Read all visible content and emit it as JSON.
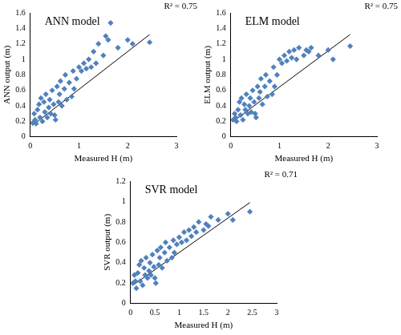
{
  "chart_data": [
    {
      "type": "scatter",
      "title": "ANN model",
      "annotation": "R² = 0.75",
      "x_label": "Measured H (m)",
      "y_label": "ANN output (m)",
      "xlim": [
        0,
        3
      ],
      "xticks": [
        0,
        1,
        2,
        3
      ],
      "ylim": [
        0,
        1.6
      ],
      "yticks": [
        0,
        0.2,
        0.4,
        0.6,
        0.8,
        1,
        1.2,
        1.4,
        1.6
      ],
      "grid": false,
      "series": [
        {
          "color": "#4f81bd",
          "marker": "diamond",
          "x": [
            0.05,
            0.08,
            0.1,
            0.12,
            0.15,
            0.18,
            0.2,
            0.22,
            0.25,
            0.28,
            0.3,
            0.32,
            0.35,
            0.38,
            0.4,
            0.42,
            0.45,
            0.48,
            0.5,
            0.52,
            0.55,
            0.58,
            0.6,
            0.62,
            0.65,
            0.7,
            0.72,
            0.75,
            0.8,
            0.85,
            0.88,
            0.9,
            0.95,
            1.0,
            1.05,
            1.1,
            1.15,
            1.2,
            1.25,
            1.3,
            1.35,
            1.4,
            1.5,
            1.55,
            1.6,
            1.65,
            1.8,
            2.0,
            2.1,
            2.45
          ],
          "values": [
            0.18,
            0.3,
            0.22,
            0.17,
            0.35,
            0.42,
            0.25,
            0.5,
            0.2,
            0.45,
            0.32,
            0.55,
            0.25,
            0.38,
            0.48,
            0.3,
            0.6,
            0.42,
            0.28,
            0.22,
            0.65,
            0.45,
            0.55,
            0.72,
            0.4,
            0.62,
            0.8,
            0.48,
            0.7,
            0.52,
            0.85,
            0.62,
            0.75,
            0.9,
            0.85,
            0.95,
            0.88,
            1.0,
            0.9,
            1.1,
            0.95,
            1.2,
            1.05,
            1.3,
            1.25,
            1.47,
            1.15,
            1.25,
            1.2,
            1.22
          ]
        },
        {
          "type": "line",
          "color": "#000000",
          "line_style": "solid",
          "x": [
            0.05,
            2.45
          ],
          "values": [
            0.15,
            1.32
          ]
        }
      ]
    },
    {
      "type": "scatter",
      "title": "ELM model",
      "annotation": "R² = 0.75",
      "x_label": "Measured H (m)",
      "y_label": "ELM output (m)",
      "xlim": [
        0,
        3
      ],
      "xticks": [
        0,
        1,
        2,
        3
      ],
      "ylim": [
        0,
        1.6
      ],
      "yticks": [
        0,
        0.2,
        0.4,
        0.6,
        0.8,
        1,
        1.2,
        1.4,
        1.6
      ],
      "grid": false,
      "series": [
        {
          "color": "#4f81bd",
          "marker": "diamond",
          "x": [
            0.05,
            0.08,
            0.1,
            0.12,
            0.15,
            0.18,
            0.2,
            0.22,
            0.25,
            0.28,
            0.3,
            0.32,
            0.35,
            0.38,
            0.4,
            0.42,
            0.45,
            0.48,
            0.5,
            0.52,
            0.55,
            0.58,
            0.6,
            0.62,
            0.65,
            0.7,
            0.72,
            0.75,
            0.8,
            0.85,
            0.88,
            0.9,
            0.95,
            1.0,
            1.05,
            1.1,
            1.15,
            1.2,
            1.25,
            1.3,
            1.35,
            1.4,
            1.5,
            1.55,
            1.6,
            1.65,
            1.8,
            2.0,
            2.1,
            2.45
          ],
          "values": [
            0.22,
            0.3,
            0.25,
            0.2,
            0.35,
            0.45,
            0.28,
            0.5,
            0.22,
            0.42,
            0.35,
            0.55,
            0.3,
            0.4,
            0.5,
            0.32,
            0.6,
            0.45,
            0.3,
            0.25,
            0.65,
            0.5,
            0.58,
            0.75,
            0.42,
            0.65,
            0.8,
            0.52,
            0.72,
            0.55,
            0.9,
            0.65,
            0.8,
            1.0,
            0.95,
            1.05,
            0.98,
            1.1,
            1.02,
            1.12,
            1.0,
            1.15,
            1.05,
            1.12,
            1.1,
            1.15,
            1.05,
            1.12,
            1.0,
            1.17
          ]
        },
        {
          "type": "line",
          "color": "#000000",
          "line_style": "solid",
          "x": [
            0.05,
            2.45
          ],
          "values": [
            0.2,
            1.32
          ]
        }
      ]
    },
    {
      "type": "scatter",
      "title": "SVR model",
      "annotation": "R² = 0.71",
      "x_label": "Measured H (m)",
      "y_label": "SVR output (m)",
      "xlim": [
        0,
        3
      ],
      "xticks": [
        0,
        0.5,
        1,
        1.5,
        2,
        2.5,
        3
      ],
      "ylim": [
        0,
        1.2
      ],
      "yticks": [
        0,
        0.2,
        0.4,
        0.6,
        0.8,
        1,
        1.2
      ],
      "grid": false,
      "series": [
        {
          "color": "#4f81bd",
          "marker": "diamond",
          "x": [
            0.05,
            0.08,
            0.1,
            0.12,
            0.15,
            0.18,
            0.2,
            0.22,
            0.25,
            0.28,
            0.3,
            0.32,
            0.35,
            0.38,
            0.4,
            0.42,
            0.45,
            0.48,
            0.5,
            0.52,
            0.55,
            0.58,
            0.6,
            0.62,
            0.65,
            0.7,
            0.72,
            0.75,
            0.8,
            0.85,
            0.88,
            0.9,
            0.95,
            1.0,
            1.05,
            1.1,
            1.15,
            1.2,
            1.25,
            1.3,
            1.35,
            1.4,
            1.5,
            1.55,
            1.6,
            1.65,
            1.8,
            2.0,
            2.1,
            2.45
          ],
          "values": [
            0.2,
            0.28,
            0.22,
            0.15,
            0.3,
            0.38,
            0.22,
            0.42,
            0.18,
            0.35,
            0.28,
            0.45,
            0.25,
            0.32,
            0.4,
            0.28,
            0.48,
            0.36,
            0.25,
            0.2,
            0.52,
            0.38,
            0.45,
            0.55,
            0.35,
            0.5,
            0.6,
            0.42,
            0.55,
            0.45,
            0.62,
            0.5,
            0.58,
            0.65,
            0.6,
            0.7,
            0.62,
            0.72,
            0.66,
            0.75,
            0.7,
            0.8,
            0.72,
            0.78,
            0.76,
            0.85,
            0.82,
            0.88,
            0.82,
            0.9
          ]
        },
        {
          "type": "line",
          "color": "#000000",
          "line_style": "solid",
          "x": [
            0.05,
            2.45
          ],
          "values": [
            0.18,
            0.99
          ]
        }
      ]
    }
  ]
}
